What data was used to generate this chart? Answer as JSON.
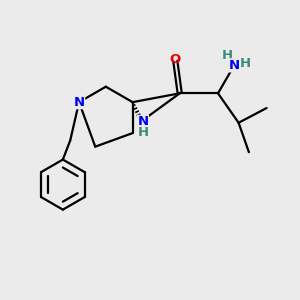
{
  "background_color": "#ebebeb",
  "bond_color": "#000000",
  "N_color": "#0000ee",
  "O_color": "#ee0000",
  "NH2_color": "#3a8a7a",
  "NH_color": "#3a8a7a",
  "H_color": "#3a8a7a",
  "line_width": 1.6,
  "font_size_atoms": 9.5,
  "figsize": [
    3.0,
    3.0
  ],
  "dpi": 100,
  "xlim": [
    0,
    10
  ],
  "ylim": [
    0,
    10
  ]
}
